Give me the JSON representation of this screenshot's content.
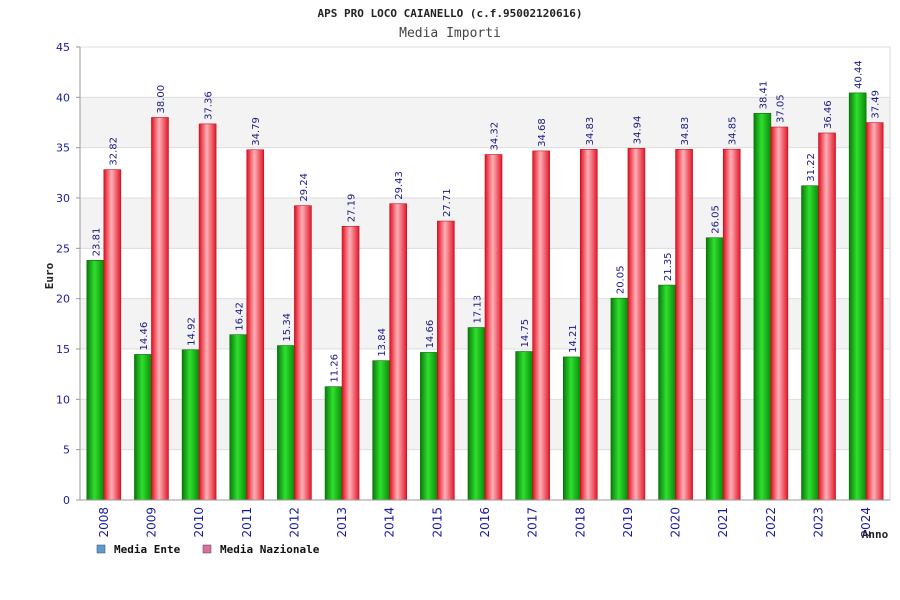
{
  "chart_data": {
    "type": "bar",
    "title": "APS PRO LOCO CAIANELLO (c.f.95002120616)",
    "subtitle": "Media Importi",
    "ylabel": "Euro",
    "xlabel": "Anno",
    "ylim": [
      0,
      45
    ],
    "yticks": [
      0,
      5,
      10,
      15,
      20,
      25,
      30,
      35,
      40,
      45
    ],
    "grid": "horizontal-bands",
    "legend_position": "bottom-left",
    "categories": [
      "2008",
      "2009",
      "2010",
      "2011",
      "2012",
      "2013",
      "2014",
      "2015",
      "2016",
      "2017",
      "2018",
      "2019",
      "2020",
      "2021",
      "2022",
      "2023",
      "2024"
    ],
    "series": [
      {
        "name": "Media Ente",
        "color": "#22bb22",
        "legend_color": "#5b9bd5",
        "values": [
          23.81,
          14.46,
          14.92,
          16.42,
          15.34,
          11.26,
          13.84,
          14.66,
          17.13,
          14.75,
          14.21,
          20.05,
          21.35,
          26.05,
          38.41,
          31.22,
          40.44
        ],
        "labels": [
          "23.81",
          "14.46",
          "14.92",
          "16.42",
          "15.34",
          "11.26",
          "13.84",
          "14.66",
          "17.13",
          "14.75",
          "14.21",
          "20.05",
          "21.35",
          "26.05",
          "38.41",
          "31.22",
          "40.44"
        ]
      },
      {
        "name": "Media Nazionale",
        "color": "#ee3344",
        "legend_color": "#dd6fa0",
        "values": [
          32.82,
          38.0,
          37.36,
          34.79,
          29.24,
          27.19,
          29.43,
          27.71,
          34.32,
          34.68,
          34.83,
          34.94,
          34.83,
          34.85,
          37.05,
          36.46,
          37.49
        ],
        "labels": [
          "32.82",
          "38.00",
          "37.36",
          "34.79",
          "29.24",
          "27.19",
          "29.43",
          "27.71",
          "34.32",
          "34.68",
          "34.83",
          "34.94",
          "34.83",
          "34.85",
          "37.05",
          "36.46",
          "37.49"
        ]
      }
    ]
  }
}
